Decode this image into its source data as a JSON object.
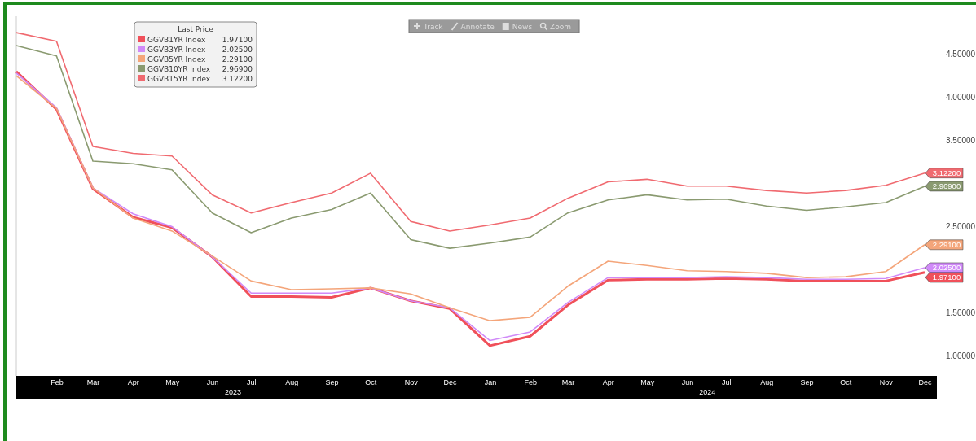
{
  "chart_data": {
    "type": "line",
    "legend_title": "Last Price",
    "legend": "top left",
    "grid": false,
    "marker": "none",
    "x": [
      "2023-01",
      "2023-02",
      "2023-03",
      "2023-04",
      "2023-05",
      "2023-06",
      "2023-07",
      "2023-08",
      "2023-09",
      "2023-10",
      "2023-11",
      "2023-12",
      "2024-01",
      "2024-02",
      "2024-03",
      "2024-04",
      "2024-05",
      "2024-06",
      "2024-07",
      "2024-08",
      "2024-09",
      "2024-10",
      "2024-11",
      "2024-12"
    ],
    "xlim": [
      "2023-01",
      "2024-12"
    ],
    "xticks": [
      {
        "value": "2023-02",
        "label": "Feb"
      },
      {
        "value": "2023-03",
        "label": "Mar"
      },
      {
        "value": "2023-04",
        "label": "Apr"
      },
      {
        "value": "2023-05",
        "label": "May"
      },
      {
        "value": "2023-06",
        "label": "Jun"
      },
      {
        "value": "2023-07",
        "label": "Jul"
      },
      {
        "value": "2023-08",
        "label": "Aug"
      },
      {
        "value": "2023-09",
        "label": "Sep"
      },
      {
        "value": "2023-10",
        "label": "Oct"
      },
      {
        "value": "2023-11",
        "label": "Nov"
      },
      {
        "value": "2023-12",
        "label": "Dec"
      },
      {
        "value": "2024-01",
        "label": "Jan"
      },
      {
        "value": "2024-02",
        "label": "Feb"
      },
      {
        "value": "2024-03",
        "label": "Mar"
      },
      {
        "value": "2024-04",
        "label": "Apr"
      },
      {
        "value": "2024-05",
        "label": "May"
      },
      {
        "value": "2024-06",
        "label": "Jun"
      },
      {
        "value": "2024-07",
        "label": "Jul"
      },
      {
        "value": "2024-08",
        "label": "Aug"
      },
      {
        "value": "2024-09",
        "label": "Sep"
      },
      {
        "value": "2024-10",
        "label": "Oct"
      },
      {
        "value": "2024-11",
        "label": "Nov"
      },
      {
        "value": "2024-12",
        "label": "Dec"
      }
    ],
    "ylim": [
      0.77,
      4.94
    ],
    "yticks": [
      {
        "value": 1,
        "label": "1.00000"
      },
      {
        "value": 1.5,
        "label": "1.50000"
      },
      {
        "value": 2.5,
        "label": "2.50000"
      },
      {
        "value": 3.5,
        "label": "3.50000"
      },
      {
        "value": 4,
        "label": "4.00000"
      },
      {
        "value": 4.5,
        "label": "4.50000"
      }
    ],
    "annotations": [
      "Track",
      "Annotate",
      "News",
      "Zoom",
      "2023",
      "2024"
    ],
    "series": [
      {
        "name": "GGVB1YR Index",
        "color": "#f0505a",
        "values": [
          4.3,
          3.86,
          2.94,
          2.61,
          2.49,
          2.15,
          1.69,
          1.69,
          1.68,
          1.79,
          1.64,
          1.55,
          1.12,
          1.23,
          1.59,
          1.88,
          1.89,
          1.89,
          1.9,
          1.89,
          1.87,
          1.87,
          1.87,
          1.971
        ],
        "value_labels": [
          null,
          null,
          null,
          null,
          null,
          null,
          null,
          null,
          null,
          null,
          null,
          null,
          null,
          null,
          null,
          null,
          null,
          null,
          null,
          null,
          null,
          null,
          null,
          "1.97100"
        ]
      },
      {
        "name": "GGVB3YR Index",
        "color": "#d08af8",
        "values": [
          4.28,
          3.88,
          2.95,
          2.65,
          2.5,
          2.15,
          1.73,
          1.73,
          1.73,
          1.79,
          1.64,
          1.56,
          1.18,
          1.28,
          1.62,
          1.91,
          1.91,
          1.91,
          1.92,
          1.91,
          1.89,
          1.89,
          1.9,
          2.025
        ],
        "value_labels": [
          null,
          null,
          null,
          null,
          null,
          null,
          null,
          null,
          null,
          null,
          null,
          null,
          null,
          null,
          null,
          null,
          null,
          null,
          null,
          null,
          null,
          null,
          null,
          "2.02500"
        ]
      },
      {
        "name": "GGVB5YR Index",
        "color": "#f4a57a",
        "values": [
          4.25,
          3.87,
          2.95,
          2.6,
          2.45,
          2.16,
          1.87,
          1.77,
          1.78,
          1.79,
          1.72,
          1.56,
          1.41,
          1.45,
          1.81,
          2.1,
          2.05,
          1.99,
          1.98,
          1.96,
          1.91,
          1.92,
          1.98,
          2.291
        ],
        "value_labels": [
          null,
          null,
          null,
          null,
          null,
          null,
          null,
          null,
          null,
          null,
          null,
          null,
          null,
          null,
          null,
          null,
          null,
          null,
          null,
          null,
          null,
          null,
          null,
          "2.29100"
        ]
      },
      {
        "name": "GGVB10YR Index",
        "color": "#8a9a70",
        "values": [
          4.6,
          4.48,
          3.26,
          3.23,
          3.16,
          2.66,
          2.43,
          2.6,
          2.7,
          2.89,
          2.35,
          2.25,
          2.31,
          2.38,
          2.66,
          2.81,
          2.87,
          2.81,
          2.82,
          2.74,
          2.69,
          2.73,
          2.78,
          2.969
        ],
        "value_labels": [
          null,
          null,
          null,
          null,
          null,
          null,
          null,
          null,
          null,
          null,
          null,
          null,
          null,
          null,
          null,
          null,
          null,
          null,
          null,
          null,
          null,
          null,
          null,
          "2.96900"
        ]
      },
      {
        "name": "GGVB15YR Index",
        "color": "#f06a70",
        "values": [
          4.75,
          4.65,
          3.43,
          3.35,
          3.32,
          2.87,
          2.66,
          2.78,
          2.89,
          3.12,
          2.56,
          2.45,
          2.52,
          2.6,
          2.83,
          3.02,
          3.05,
          2.97,
          2.97,
          2.92,
          2.89,
          2.92,
          2.98,
          3.122
        ],
        "value_labels": [
          null,
          null,
          null,
          null,
          null,
          null,
          null,
          null,
          null,
          null,
          null,
          null,
          null,
          null,
          null,
          null,
          null,
          null,
          null,
          null,
          null,
          null,
          null,
          "3.12200"
        ]
      }
    ]
  }
}
